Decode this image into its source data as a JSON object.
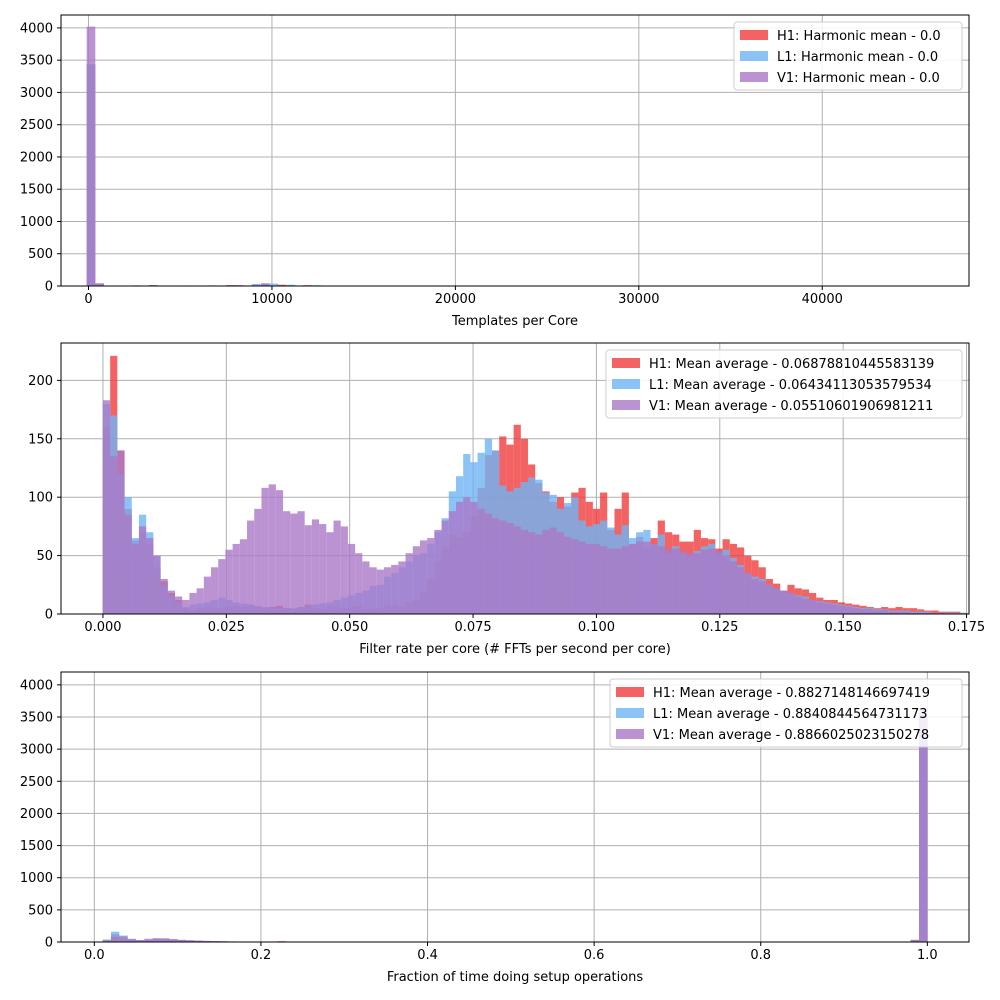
{
  "colors": {
    "H1": "#f03c3c",
    "L1": "#6eb4f5",
    "V1": "#aa78c8",
    "grid": "#b0b0b0",
    "axis": "#000000"
  },
  "chart_data": [
    {
      "type": "histogram",
      "xlabel": "Templates per Core",
      "ylabel": "",
      "xlim": [
        -1500,
        48000
      ],
      "ylim": [
        0,
        4200
      ],
      "xticks": [
        0,
        10000,
        20000,
        30000,
        40000
      ],
      "xtick_labels": [
        "0",
        "10000",
        "20000",
        "30000",
        "40000"
      ],
      "yticks": [
        0,
        500,
        1000,
        1500,
        2000,
        2500,
        3000,
        3500,
        4000
      ],
      "ytick_labels": [
        "0",
        "500",
        "1000",
        "1500",
        "2000",
        "2500",
        "3000",
        "3500",
        "4000"
      ],
      "grid": true,
      "legend_position": "top-right",
      "bin_width": 470,
      "series": [
        {
          "name": "H1: Harmonic mean  - 0.0",
          "color_key": "H1",
          "bin_starts": [
            -100,
            370,
            2370,
            3290,
            5160,
            7500,
            8900,
            9400,
            10300,
            11700,
            13100
          ],
          "counts": [
            3430,
            40,
            6,
            10,
            8,
            14,
            25,
            35,
            20,
            12,
            5
          ]
        },
        {
          "name": "L1: Harmonic mean  - 0.0",
          "color_key": "L1",
          "bin_starts": [
            -100,
            370,
            2830,
            4700,
            6570,
            8900,
            9400,
            9870,
            10800,
            12200
          ],
          "counts": [
            3440,
            40,
            5,
            8,
            10,
            30,
            45,
            38,
            20,
            12
          ]
        },
        {
          "name": "V1: Harmonic mean  - 0.0",
          "color_key": "V1",
          "bin_starts": [
            -100,
            370,
            2370,
            3290,
            6110,
            7970,
            9400,
            11700,
            13570
          ],
          "counts": [
            4020,
            40,
            10,
            15,
            8,
            14,
            28,
            10,
            5
          ]
        }
      ]
    },
    {
      "type": "histogram",
      "xlabel": "Filter rate per core (# FFTs per second per core)",
      "ylabel": "",
      "xlim": [
        -0.0085,
        0.1755
      ],
      "ylim": [
        0,
        232
      ],
      "xticks": [
        0.0,
        0.025,
        0.05,
        0.075,
        0.1,
        0.125,
        0.15,
        0.175
      ],
      "xtick_labels": [
        "0.000",
        "0.025",
        "0.050",
        "0.075",
        "0.100",
        "0.125",
        "0.150",
        "0.175"
      ],
      "yticks": [
        0,
        50,
        100,
        150,
        200
      ],
      "ytick_labels": [
        "0",
        "50",
        "100",
        "150",
        "200"
      ],
      "grid": true,
      "legend_position": "top-right",
      "series": [
        {
          "name": "H1: Mean average - 0.06878810445583139",
          "color_key": "H1",
          "bin_start": 0.0,
          "bin_width": 0.00146,
          "counts": [
            160,
            221,
            140,
            90,
            63,
            70,
            60,
            40,
            28,
            18,
            12,
            5,
            3,
            5,
            6,
            5,
            5,
            6,
            7,
            6,
            8,
            6,
            5,
            6,
            7,
            5,
            4,
            6,
            8,
            5,
            4,
            7,
            6,
            5,
            6,
            7,
            4,
            5,
            5,
            8,
            7,
            6,
            10,
            12,
            18,
            30,
            45,
            57,
            68,
            66,
            70,
            84,
            108,
            136,
            140,
            152,
            145,
            162,
            150,
            128,
            112,
            105,
            96,
            100,
            92,
            104,
            108,
            96,
            90,
            104,
            72,
            90,
            104,
            60,
            66,
            56,
            65,
            80,
            70,
            68,
            62,
            62,
            72,
            65,
            64,
            56,
            64,
            60,
            57,
            50,
            46,
            40,
            30,
            26,
            20,
            25,
            22,
            21,
            18,
            14,
            12,
            12,
            10,
            9,
            8,
            7,
            6,
            5,
            6,
            5,
            6,
            5,
            5,
            4,
            3,
            3,
            2,
            2,
            2,
            1
          ]
        },
        {
          "name": "L1: Mean average - 0.06434113053579534",
          "color_key": "L1",
          "bin_start": 0.0,
          "bin_width": 0.00146,
          "counts": [
            180,
            170,
            120,
            100,
            65,
            85,
            70,
            50,
            25,
            15,
            10,
            6,
            8,
            9,
            10,
            12,
            14,
            12,
            10,
            9,
            8,
            7,
            6,
            5,
            5,
            5,
            5,
            6,
            7,
            8,
            9,
            10,
            12,
            14,
            16,
            18,
            20,
            24,
            25,
            32,
            35,
            40,
            45,
            50,
            52,
            60,
            70,
            82,
            105,
            118,
            137,
            130,
            138,
            150,
            140,
            110,
            105,
            108,
            113,
            117,
            115,
            104,
            102,
            90,
            95,
            100,
            80,
            75,
            77,
            80,
            74,
            68,
            76,
            65,
            70,
            72,
            60,
            68,
            52,
            58,
            52,
            50,
            54,
            58,
            60,
            52,
            55,
            48,
            42,
            35,
            32,
            30,
            25,
            22,
            20,
            18,
            16,
            15,
            12,
            11,
            10,
            9,
            8,
            7,
            6,
            5,
            5,
            4,
            4,
            3,
            3,
            3,
            2,
            2,
            2,
            1,
            1,
            1,
            1,
            1
          ]
        },
        {
          "name": "V1: Mean average - 0.05510601906981211",
          "color_key": "V1",
          "bin_start": 0.0,
          "bin_width": 0.00146,
          "counts": [
            183,
            135,
            140,
            85,
            60,
            75,
            65,
            50,
            30,
            20,
            15,
            12,
            18,
            22,
            32,
            40,
            47,
            55,
            60,
            64,
            80,
            90,
            108,
            111,
            106,
            88,
            86,
            88,
            76,
            81,
            77,
            70,
            80,
            75,
            60,
            52,
            45,
            40,
            38,
            40,
            42,
            45,
            52,
            58,
            63,
            65,
            72,
            80,
            88,
            96,
            100,
            96,
            90,
            86,
            82,
            80,
            78,
            75,
            72,
            70,
            68,
            72,
            74,
            70,
            66,
            64,
            62,
            60,
            60,
            58,
            56,
            56,
            58,
            60,
            62,
            62,
            60,
            58,
            56,
            56,
            54,
            52,
            52,
            55,
            56,
            54,
            50,
            45,
            40,
            35,
            30,
            28,
            25,
            22,
            20,
            18,
            15,
            13,
            12,
            10,
            9,
            8,
            7,
            6,
            5,
            4,
            4,
            3,
            3,
            2,
            2,
            2,
            1,
            1,
            1,
            1,
            1,
            0,
            0,
            0
          ]
        }
      ]
    },
    {
      "type": "histogram",
      "xlabel": "Fraction of time doing setup operations",
      "ylabel": "",
      "xlim": [
        -0.04,
        1.05
      ],
      "ylim": [
        0,
        4200
      ],
      "xticks": [
        0.0,
        0.2,
        0.4,
        0.6,
        0.8,
        1.0
      ],
      "xtick_labels": [
        "0.0",
        "0.2",
        "0.4",
        "0.6",
        "0.8",
        "1.0"
      ],
      "yticks": [
        0,
        500,
        1000,
        1500,
        2000,
        2500,
        3000,
        3500,
        4000
      ],
      "ytick_labels": [
        "0",
        "500",
        "1000",
        "1500",
        "2000",
        "2500",
        "3000",
        "3500",
        "4000"
      ],
      "grid": true,
      "legend_position": "top-right",
      "bin_start": 0.0,
      "bin_width": 0.01,
      "series": [
        {
          "name": "H1: Mean average - 0.8827148146697419",
          "color_key": "H1",
          "tail_counts": [
            0,
            30,
            120,
            90,
            40,
            25,
            30,
            45,
            55,
            40,
            30,
            25,
            20,
            15,
            12,
            10,
            8,
            6,
            5,
            4,
            3,
            3,
            12,
            2,
            2
          ],
          "peak": {
            "x": 0.99,
            "count": 3550
          },
          "near_peak": [
            {
              "x": 0.98,
              "count": 30
            }
          ]
        },
        {
          "name": "L1: Mean average - 0.8840844564731173",
          "color_key": "L1",
          "tail_counts": [
            0,
            40,
            160,
            100,
            50,
            30,
            35,
            50,
            45,
            35,
            28,
            22,
            18,
            14,
            11,
            9,
            7,
            6,
            5,
            4,
            3,
            3,
            8,
            2,
            2
          ],
          "peak": {
            "x": 0.99,
            "count": 3560
          },
          "near_peak": [
            {
              "x": 0.98,
              "count": 25
            }
          ]
        },
        {
          "name": "V1: Mean average - 0.8866025023150278",
          "color_key": "V1",
          "tail_counts": [
            0,
            20,
            80,
            70,
            45,
            30,
            50,
            60,
            55,
            45,
            35,
            28,
            22,
            18,
            14,
            11,
            9,
            7,
            6,
            5,
            4,
            3,
            5,
            2,
            2
          ],
          "peak": {
            "x": 0.99,
            "count": 3620
          },
          "near_peak": [
            {
              "x": 0.98,
              "count": 35
            }
          ]
        }
      ]
    }
  ]
}
